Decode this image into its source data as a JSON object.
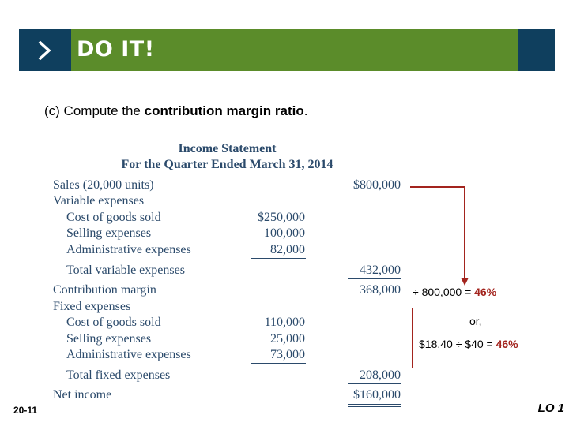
{
  "banner": {
    "title": "DO IT!",
    "icon": "chevron-right-icon"
  },
  "prompt": {
    "prefix": "(c)  Compute the ",
    "emphasis": "contribution margin ratio",
    "suffix": "."
  },
  "statement": {
    "title": "Income Statement",
    "subtitle": "For the Quarter Ended March 31, 2014",
    "rows": {
      "sales": {
        "label": "Sales (20,000 units)",
        "total": "$800,000"
      },
      "variable_header": {
        "label": "Variable expenses"
      },
      "var_cogs": {
        "label": "Cost of goods sold",
        "amount": "$250,000"
      },
      "var_selling": {
        "label": "Selling expenses",
        "amount": "100,000"
      },
      "var_admin": {
        "label": "Administrative expenses",
        "amount": "82,000"
      },
      "total_variable": {
        "label": "Total variable expenses",
        "total": "432,000"
      },
      "contribution": {
        "label": "Contribution margin",
        "total": "368,000"
      },
      "fixed_header": {
        "label": "Fixed expenses"
      },
      "fix_cogs": {
        "label": "Cost of goods sold",
        "amount": "110,000"
      },
      "fix_selling": {
        "label": "Selling expenses",
        "amount": "25,000"
      },
      "fix_admin": {
        "label": "Administrative expenses",
        "amount": "73,000"
      },
      "total_fixed": {
        "label": "Total fixed expenses",
        "total": "208,000"
      },
      "net_income": {
        "label": "Net income",
        "total": "$160,000"
      }
    }
  },
  "calc": {
    "line1_text": "÷  800,000 =",
    "line1_result": "46%",
    "or": "or,",
    "line2_text": "$18.40 ÷ $40 =",
    "line2_result": "46%"
  },
  "colors": {
    "accent_red": "#a3241e",
    "banner_green": "#5b8c2a",
    "banner_navy": "#0f3f5e",
    "statement_text": "#2b4a6b"
  },
  "footer": {
    "slide_number": "20-11",
    "learning_objective": "LO 1"
  }
}
